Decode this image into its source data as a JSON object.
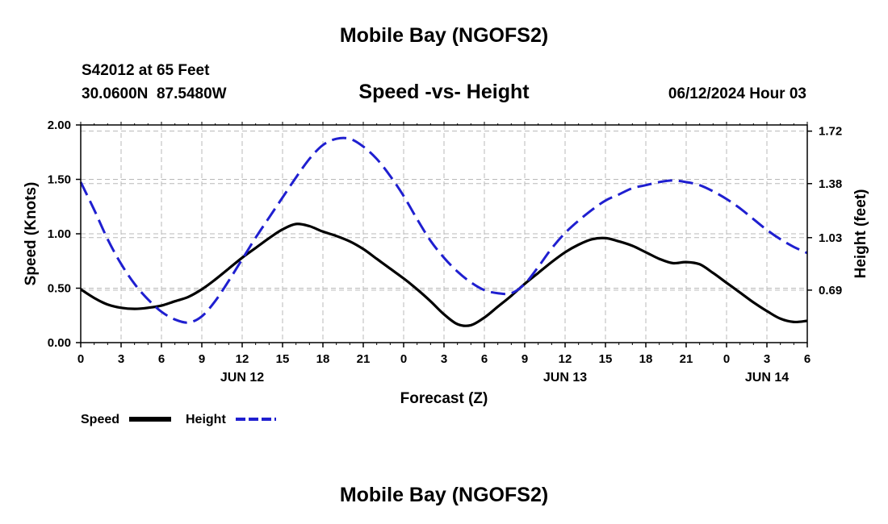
{
  "page": {
    "title_top": "Mobile Bay (NGOFS2)",
    "title_bottom": "Mobile Bay (NGOFS2)",
    "station_line1": "S42012 at 65 Feet",
    "station_line2": "30.0600N  87.5480W",
    "timestamp": "06/12/2024 Hour 03"
  },
  "colors": {
    "speed": "#000000",
    "height": "#1f1fd0",
    "grid": "#b8b8b8"
  },
  "chart_data": {
    "type": "line",
    "title": "Speed -vs- Height",
    "xlabel": "Forecast (Z)",
    "ylabel_left": "Speed (Knots)",
    "ylabel_right": "Height (feet)",
    "xlim": [
      0,
      54
    ],
    "ylim_left": [
      0,
      2.0
    ],
    "ylim_right": [
      0.35,
      1.76
    ],
    "grid": true,
    "legend_placement": "bottom-left",
    "x_ticks": [
      0,
      3,
      6,
      9,
      12,
      15,
      18,
      21,
      24,
      27,
      30,
      33,
      36,
      39,
      42,
      45,
      48,
      51,
      54
    ],
    "x_tick_labels": [
      "0",
      "3",
      "6",
      "9",
      "12",
      "15",
      "18",
      "21",
      "0",
      "3",
      "6",
      "9",
      "12",
      "15",
      "18",
      "21",
      "0",
      "3",
      "6"
    ],
    "date_labels": [
      {
        "x": 12,
        "label": "JUN 12"
      },
      {
        "x": 36,
        "label": "JUN 13"
      },
      {
        "x": 51,
        "label": "JUN 14"
      }
    ],
    "y_left_ticks": [
      0,
      0.5,
      1.0,
      1.5,
      2.0
    ],
    "y_left_tick_labels": [
      "0.00",
      "0.50",
      "1.00",
      "1.50",
      "2.00"
    ],
    "y_right_ticks": [
      0.69,
      1.03,
      1.38,
      1.72
    ],
    "y_right_tick_labels": [
      "0.69",
      "1.03",
      "1.38",
      "1.72"
    ],
    "series": [
      {
        "name": "Speed",
        "axis": "left",
        "style": "solid",
        "x": [
          0,
          1,
          2,
          3,
          4,
          5,
          6,
          7,
          8,
          9,
          10,
          11,
          12,
          13,
          14,
          15,
          16,
          17,
          18,
          19,
          20,
          21,
          22,
          23,
          24,
          25,
          26,
          27,
          28,
          29,
          30,
          31,
          32,
          33,
          34,
          35,
          36,
          37,
          38,
          39,
          40,
          41,
          42,
          43,
          44,
          45,
          46,
          47,
          48,
          49,
          50,
          51,
          52,
          53,
          54
        ],
        "values": [
          0.49,
          0.41,
          0.35,
          0.32,
          0.31,
          0.32,
          0.34,
          0.38,
          0.42,
          0.49,
          0.58,
          0.68,
          0.78,
          0.87,
          0.96,
          1.04,
          1.09,
          1.07,
          1.02,
          0.98,
          0.93,
          0.86,
          0.77,
          0.68,
          0.59,
          0.49,
          0.38,
          0.26,
          0.17,
          0.16,
          0.23,
          0.33,
          0.43,
          0.54,
          0.64,
          0.74,
          0.83,
          0.9,
          0.95,
          0.96,
          0.93,
          0.89,
          0.83,
          0.77,
          0.73,
          0.74,
          0.72,
          0.64,
          0.55,
          0.46,
          0.37,
          0.29,
          0.22,
          0.19,
          0.2
        ]
      },
      {
        "name": "Height",
        "axis": "right",
        "style": "dashed",
        "x": [
          0,
          1,
          2,
          3,
          4,
          5,
          6,
          7,
          8,
          9,
          10,
          11,
          12,
          13,
          14,
          15,
          16,
          17,
          18,
          19,
          20,
          21,
          22,
          23,
          24,
          25,
          26,
          27,
          28,
          29,
          30,
          31,
          32,
          33,
          34,
          35,
          36,
          37,
          38,
          39,
          40,
          41,
          42,
          43,
          44,
          45,
          46,
          47,
          48,
          49,
          50,
          51,
          52,
          53,
          54
        ],
        "values": [
          1.39,
          1.21,
          1.02,
          0.86,
          0.73,
          0.63,
          0.55,
          0.5,
          0.48,
          0.52,
          0.62,
          0.75,
          0.89,
          1.03,
          1.16,
          1.29,
          1.42,
          1.54,
          1.63,
          1.67,
          1.67,
          1.62,
          1.54,
          1.43,
          1.3,
          1.15,
          1.01,
          0.9,
          0.81,
          0.74,
          0.69,
          0.67,
          0.67,
          0.73,
          0.84,
          0.96,
          1.06,
          1.14,
          1.21,
          1.27,
          1.31,
          1.35,
          1.37,
          1.39,
          1.4,
          1.39,
          1.37,
          1.33,
          1.28,
          1.22,
          1.15,
          1.08,
          1.02,
          0.97,
          0.93
        ]
      }
    ]
  }
}
